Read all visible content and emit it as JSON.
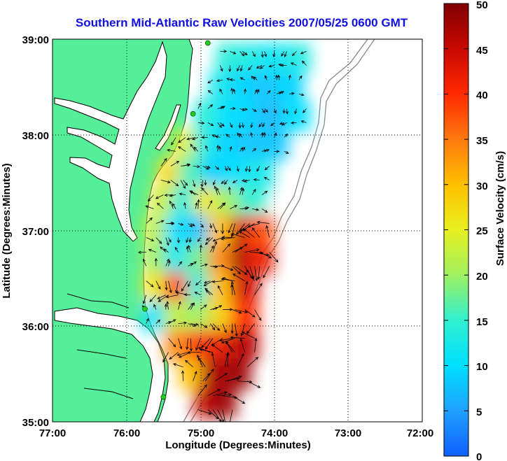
{
  "chart_data": {
    "type": "heatmap",
    "title": "Southern Mid-Atlantic Raw Velocities 2007/05/25 0600 GMT",
    "xlabel": "Longitude (Degrees:Minutes)",
    "ylabel": "Latitude (Degrees:Minutes)",
    "colorbar_label": "Surface Velocity (cm/s)",
    "x_ticks": [
      "77:00",
      "76:00",
      "75:00",
      "74:00",
      "73:00",
      "72:00"
    ],
    "y_ticks": [
      "39:00",
      "38:00",
      "37:00",
      "36:00",
      "35:00"
    ],
    "colorbar_ticks": [
      "50",
      "45",
      "40",
      "35",
      "30",
      "25",
      "20",
      "15",
      "10",
      "5",
      "0"
    ],
    "xlim": [
      -77,
      -72
    ],
    "ylim": [
      35,
      39
    ],
    "clim": [
      0,
      50
    ],
    "grid": true,
    "colors": {
      "land": "#55ee99",
      "water": "#ffffff",
      "coast": "#000000",
      "bathymetry": "#888888",
      "title": "#1010e0",
      "station": "#22cc22"
    },
    "velocity_field": [
      {
        "lon": -74.6,
        "lat": 38.8,
        "v": 14
      },
      {
        "lon": -74.3,
        "lat": 38.8,
        "v": 13
      },
      {
        "lon": -74.0,
        "lat": 38.8,
        "v": 11
      },
      {
        "lon": -73.7,
        "lat": 38.8,
        "v": 13
      },
      {
        "lon": -74.7,
        "lat": 38.5,
        "v": 12
      },
      {
        "lon": -74.4,
        "lat": 38.5,
        "v": 9
      },
      {
        "lon": -74.1,
        "lat": 38.5,
        "v": 8
      },
      {
        "lon": -73.8,
        "lat": 38.5,
        "v": 9
      },
      {
        "lon": -74.9,
        "lat": 38.2,
        "v": 14
      },
      {
        "lon": -74.6,
        "lat": 38.2,
        "v": 10
      },
      {
        "lon": -74.3,
        "lat": 38.2,
        "v": 9
      },
      {
        "lon": -74.0,
        "lat": 38.2,
        "v": 7
      },
      {
        "lon": -73.7,
        "lat": 38.2,
        "v": 10
      },
      {
        "lon": -75.2,
        "lat": 37.9,
        "v": 24
      },
      {
        "lon": -74.9,
        "lat": 37.9,
        "v": 13
      },
      {
        "lon": -74.6,
        "lat": 37.9,
        "v": 9
      },
      {
        "lon": -74.3,
        "lat": 37.9,
        "v": 8
      },
      {
        "lon": -74.0,
        "lat": 37.9,
        "v": 8
      },
      {
        "lon": -75.4,
        "lat": 37.6,
        "v": 27
      },
      {
        "lon": -75.1,
        "lat": 37.6,
        "v": 16
      },
      {
        "lon": -74.8,
        "lat": 37.6,
        "v": 9
      },
      {
        "lon": -74.5,
        "lat": 37.6,
        "v": 10
      },
      {
        "lon": -74.2,
        "lat": 37.6,
        "v": 12
      },
      {
        "lon": -75.5,
        "lat": 37.3,
        "v": 23
      },
      {
        "lon": -75.2,
        "lat": 37.3,
        "v": 14
      },
      {
        "lon": -74.9,
        "lat": 37.3,
        "v": 26
      },
      {
        "lon": -74.6,
        "lat": 37.3,
        "v": 20
      },
      {
        "lon": -74.3,
        "lat": 37.3,
        "v": 15
      },
      {
        "lon": -75.6,
        "lat": 37.0,
        "v": 22
      },
      {
        "lon": -75.3,
        "lat": 37.0,
        "v": 10
      },
      {
        "lon": -75.0,
        "lat": 37.0,
        "v": 8
      },
      {
        "lon": -74.7,
        "lat": 37.0,
        "v": 30
      },
      {
        "lon": -74.4,
        "lat": 37.0,
        "v": 45
      },
      {
        "lon": -74.2,
        "lat": 37.0,
        "v": 38
      },
      {
        "lon": -75.6,
        "lat": 36.7,
        "v": 20
      },
      {
        "lon": -75.3,
        "lat": 36.7,
        "v": 12
      },
      {
        "lon": -75.0,
        "lat": 36.7,
        "v": 18
      },
      {
        "lon": -74.7,
        "lat": 36.7,
        "v": 34
      },
      {
        "lon": -74.4,
        "lat": 36.7,
        "v": 48
      },
      {
        "lon": -74.2,
        "lat": 36.7,
        "v": 42
      },
      {
        "lon": -75.6,
        "lat": 36.4,
        "v": 26
      },
      {
        "lon": -75.3,
        "lat": 36.4,
        "v": 38
      },
      {
        "lon": -75.0,
        "lat": 36.4,
        "v": 14
      },
      {
        "lon": -74.7,
        "lat": 36.4,
        "v": 30
      },
      {
        "lon": -74.4,
        "lat": 36.4,
        "v": 44
      },
      {
        "lon": -75.6,
        "lat": 36.1,
        "v": 11
      },
      {
        "lon": -75.3,
        "lat": 36.1,
        "v": 22
      },
      {
        "lon": -75.0,
        "lat": 36.1,
        "v": 20
      },
      {
        "lon": -74.7,
        "lat": 36.1,
        "v": 28
      },
      {
        "lon": -74.4,
        "lat": 36.1,
        "v": 40
      },
      {
        "lon": -75.3,
        "lat": 35.8,
        "v": 34
      },
      {
        "lon": -75.0,
        "lat": 35.8,
        "v": 40
      },
      {
        "lon": -74.7,
        "lat": 35.8,
        "v": 42
      },
      {
        "lon": -74.4,
        "lat": 35.8,
        "v": 46
      },
      {
        "lon": -75.1,
        "lat": 35.5,
        "v": 30
      },
      {
        "lon": -74.8,
        "lat": 35.5,
        "v": 47
      },
      {
        "lon": -74.5,
        "lat": 35.5,
        "v": 48
      },
      {
        "lon": -74.9,
        "lat": 35.2,
        "v": 45
      },
      {
        "lon": -74.7,
        "lat": 35.2,
        "v": 48
      }
    ],
    "stations": [
      {
        "lon": -74.9,
        "lat": 38.96
      },
      {
        "lon": -75.1,
        "lat": 38.22
      },
      {
        "lon": -75.75,
        "lat": 36.18
      },
      {
        "lon": -75.5,
        "lat": 35.26
      }
    ]
  }
}
